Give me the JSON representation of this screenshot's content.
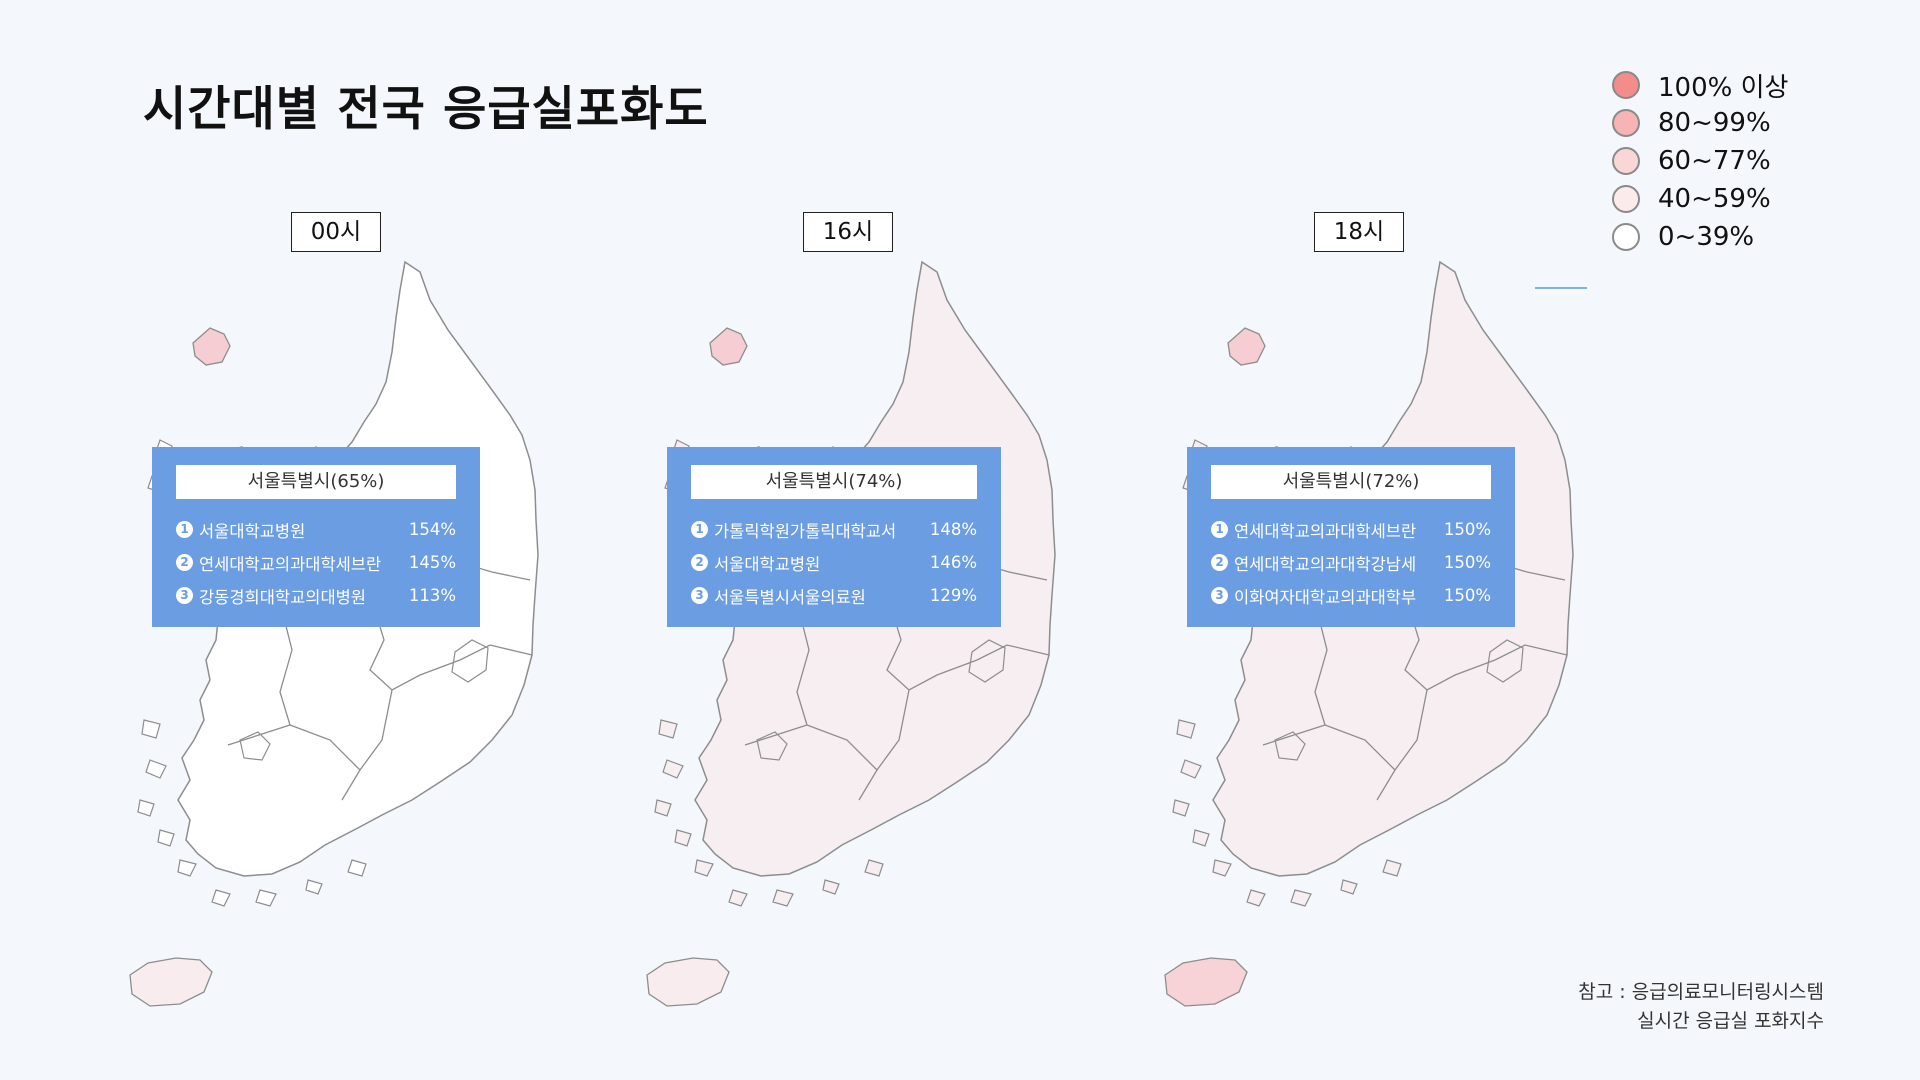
{
  "title": "시간대별 전국 응급실포화도",
  "legend": [
    {
      "label": "100% 이상",
      "color": "#f48c8c"
    },
    {
      "label": "80~99%",
      "color": "#f7b4b4"
    },
    {
      "label": "60~77%",
      "color": "#fad6d6"
    },
    {
      "label": "40~59%",
      "color": "#fcebeb"
    },
    {
      "label": "0~39%",
      "color": "#ffffff"
    }
  ],
  "panels": [
    {
      "time": "00시",
      "region_fill": "#ffffff",
      "seoul_fill": "#f6cdd2",
      "jeju_fill": "#f8ecef",
      "region_title": "서울특별시(65%)",
      "ranks": [
        {
          "num": "1",
          "name": "서울대학교병원",
          "pct": "154%"
        },
        {
          "num": "2",
          "name": "연세대학교의과대학세브란",
          "pct": "145%"
        },
        {
          "num": "3",
          "name": "강동경희대학교의대병원",
          "pct": "113%"
        }
      ]
    },
    {
      "time": "16시",
      "region_fill": "#f7eef2",
      "seoul_fill": "#f6cdd2",
      "jeju_fill": "#f8ecef",
      "region_title": "서울특별시(74%)",
      "ranks": [
        {
          "num": "1",
          "name": "가톨릭학원가톨릭대학교서",
          "pct": "148%"
        },
        {
          "num": "2",
          "name": "서울대학교병원",
          "pct": "146%"
        },
        {
          "num": "3",
          "name": "서울특별시서울의료원",
          "pct": "129%"
        }
      ]
    },
    {
      "time": "18시",
      "region_fill": "#f7eef2",
      "seoul_fill": "#f6cdd2",
      "jeju_fill": "#f7d3d8",
      "region_title": "서울특별시(72%)",
      "ranks": [
        {
          "num": "1",
          "name": "연세대학교의과대학세브란",
          "pct": "150%"
        },
        {
          "num": "2",
          "name": "연세대학교의과대학강남세",
          "pct": "150%"
        },
        {
          "num": "3",
          "name": "이화여자대학교의과대학부",
          "pct": "150%"
        }
      ]
    }
  ],
  "source": {
    "line1": "참고 : 응급의료모니터링시스템",
    "line2": "실시간 응급실 포화지수"
  }
}
